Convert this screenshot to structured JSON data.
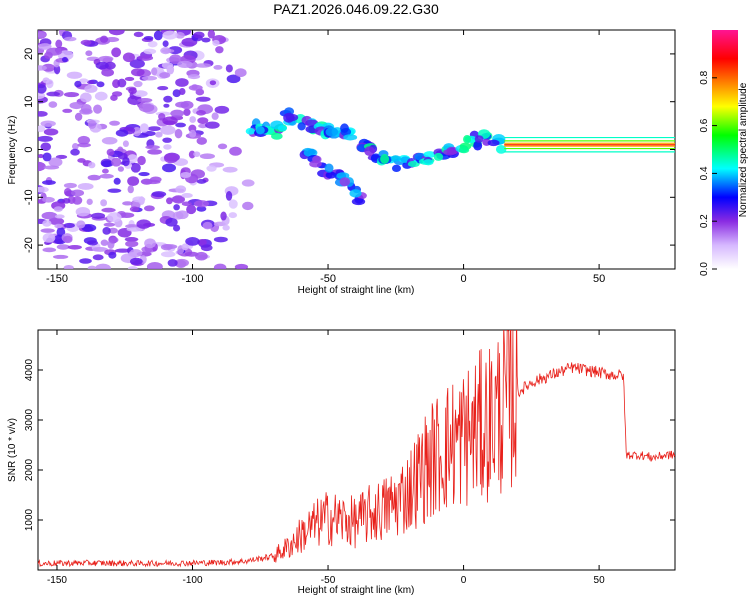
{
  "figure": {
    "title": "PAZ1.2026.046.09.22.G30"
  },
  "colors": {
    "snr_line": "#e8201a",
    "frame": "#000000",
    "background": "#ffffff"
  },
  "chart_data": [
    {
      "type": "heatmap",
      "xlabel": "Height of straight line (km)",
      "ylabel": "Frequency (Hz)",
      "xlim": [
        -157,
        78
      ],
      "ylim": [
        -25,
        25
      ],
      "xticks": [
        -150,
        -100,
        -50,
        0,
        50
      ],
      "yticks": [
        -20,
        -10,
        0,
        10,
        20
      ],
      "colorbar": {
        "label": "Normalized spectral amplitude",
        "range": [
          0,
          1
        ],
        "ticks": [
          0.0,
          0.2,
          0.4,
          0.6,
          0.8
        ],
        "colormap": "rainbow: white (0) - violet - blue - cyan - green - yellow - orange - red - magenta (1)"
      },
      "features": {
        "noise_region": [
          -157,
          -85
        ],
        "main_trace": [
          [
            -80,
            5
          ],
          [
            -75,
            4
          ],
          [
            -70,
            3
          ],
          [
            -65,
            7
          ],
          [
            -60,
            6
          ],
          [
            -55,
            5
          ],
          [
            -50,
            4
          ],
          [
            -45,
            4
          ],
          [
            -40,
            2
          ],
          [
            -35,
            0
          ],
          [
            -30,
            -2
          ],
          [
            -25,
            -3
          ],
          [
            -20,
            -3
          ],
          [
            -15,
            -2
          ],
          [
            -10,
            -1
          ],
          [
            -5,
            0
          ],
          [
            0,
            1
          ],
          [
            5,
            2
          ],
          [
            10,
            2
          ],
          [
            15,
            1
          ],
          [
            20,
            1
          ],
          [
            78,
            1
          ]
        ],
        "secondary_trace": [
          [
            -60,
            0
          ],
          [
            -55,
            -2
          ],
          [
            -50,
            -5
          ],
          [
            -45,
            -6
          ],
          [
            -40,
            -9
          ],
          [
            -35,
            -12
          ]
        ],
        "carrier_line": {
          "start": 15,
          "frequency": 1
        }
      }
    },
    {
      "type": "line",
      "xlabel": "Height of straight line (km)",
      "ylabel": "SNR (10 * v/v)",
      "xlim": [
        -157,
        78
      ],
      "ylim": [
        0,
        4800
      ],
      "xticks": [
        -150,
        -100,
        -50,
        0,
        50
      ],
      "yticks": [
        1000,
        2000,
        3000,
        4000
      ],
      "series": [
        {
          "name": "SNR",
          "x": [
            -157,
            -140,
            -120,
            -100,
            -90,
            -80,
            -70,
            -65,
            -60,
            -55,
            -50,
            -45,
            -40,
            -35,
            -30,
            -25,
            -20,
            -15,
            -10,
            -5,
            0,
            5,
            10,
            15,
            20,
            25,
            30,
            35,
            40,
            45,
            50,
            55,
            59,
            60,
            61,
            65,
            70,
            75,
            78
          ],
          "y": [
            130,
            140,
            130,
            140,
            150,
            180,
            280,
            450,
            700,
            900,
            1050,
            1000,
            950,
            1100,
            1200,
            1350,
            1600,
            2000,
            2300,
            2500,
            2650,
            2800,
            3000,
            3300,
            3550,
            3750,
            3850,
            3950,
            4050,
            4000,
            3950,
            3900,
            3900,
            2300,
            2300,
            2300,
            2250,
            2300,
            2300
          ]
        }
      ]
    }
  ]
}
